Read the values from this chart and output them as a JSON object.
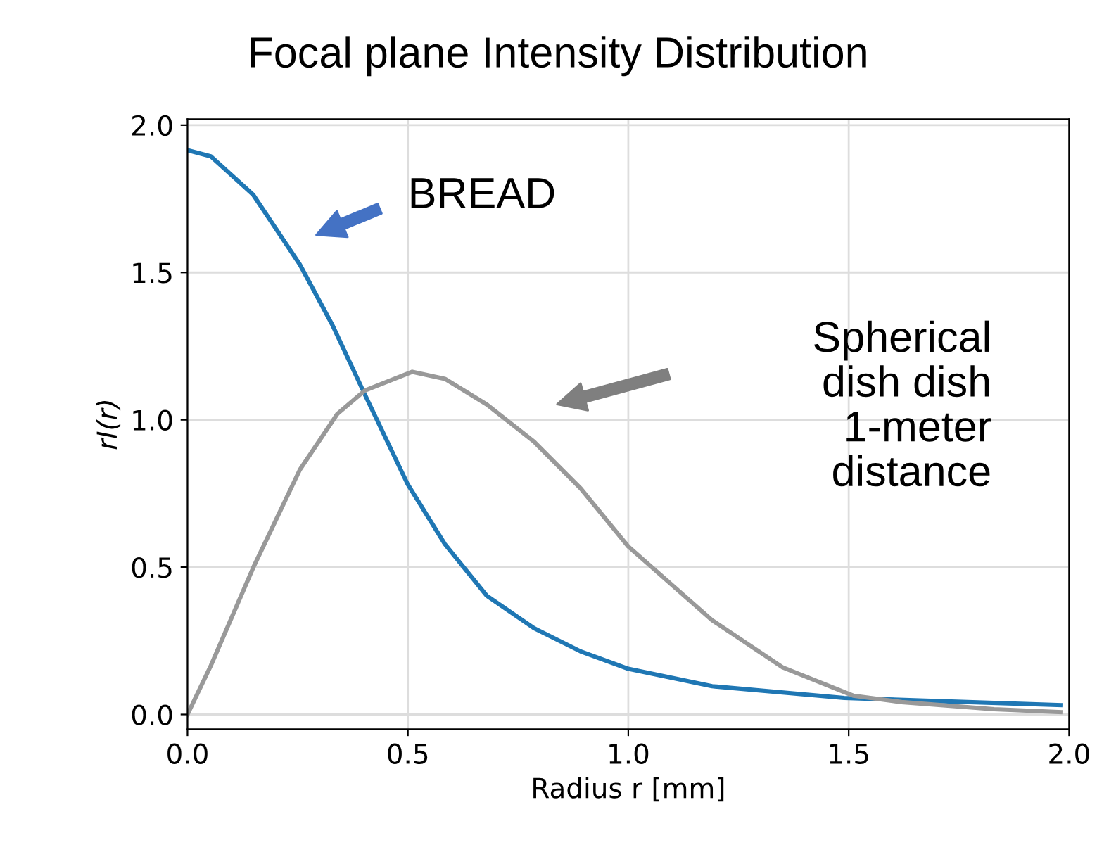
{
  "chart_data": {
    "type": "line",
    "title": "Focal plane Intensity Distribution",
    "xlabel": "Radius r [mm]",
    "ylabel": "rI(r)",
    "xlim": [
      0,
      2.0
    ],
    "ylim": [
      -0.05,
      2.02
    ],
    "xticks": [
      {
        "value": 0,
        "label": "0.0"
      },
      0.5,
      {
        "value": 1,
        "label": "1.0"
      },
      1.5,
      {
        "value": 2,
        "label": "2.0"
      }
    ],
    "yticks": [
      {
        "value": 0,
        "label": "0.0"
      },
      0.5,
      {
        "value": 1,
        "label": "1.0"
      },
      1.5,
      {
        "value": 2,
        "label": "2.0"
      }
    ],
    "grid": true,
    "marker": "none",
    "line_style": "solid",
    "series": [
      {
        "color": "#1f77b4",
        "x": [
          0,
          0.053,
          0.149,
          0.255,
          0.329,
          0.403,
          0.499,
          0.584,
          0.679,
          0.786,
          0.892,
          1.0,
          1.19,
          1.49,
          1.98
        ],
        "values": [
          1.915,
          1.894,
          1.764,
          1.527,
          1.321,
          1.084,
          0.783,
          0.578,
          0.403,
          0.293,
          0.214,
          0.155,
          0.096,
          0.056,
          0.032
        ]
      },
      {
        "color": "#999999",
        "x": [
          0,
          0.053,
          0.149,
          0.255,
          0.34,
          0.403,
          0.51,
          0.584,
          0.679,
          0.786,
          0.892,
          1.0,
          1.19,
          1.35,
          1.51,
          1.62,
          1.83,
          1.98
        ],
        "values": [
          0,
          0.166,
          0.498,
          0.831,
          1.02,
          1.1,
          1.163,
          1.139,
          1.052,
          0.926,
          0.767,
          0.57,
          0.32,
          0.16,
          0.064,
          0.042,
          0.018,
          0.008
        ]
      }
    ],
    "annotations": [
      "BREAD",
      "Spherical\ndish dish\n1-meter\ndistance"
    ]
  }
}
